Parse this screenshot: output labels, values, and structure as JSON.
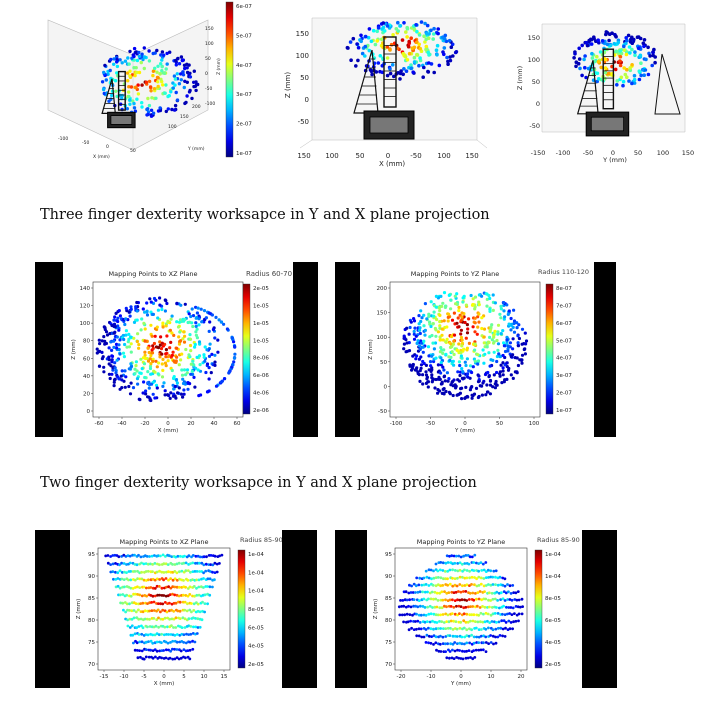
{
  "captions": {
    "three_finger": "Three finger dexterity worksapce in Y and X plane projection",
    "two_finger": "Two finger dexterity worksapce in Y and X plane projection"
  },
  "colormap": "jet",
  "chart_data": [
    {
      "type": "scatter3d",
      "panel": "top-left",
      "title": "",
      "xlabel": "X (mm)",
      "ylabel": "Y (mm)",
      "zlabel": "Z (mm)",
      "x_ticks": [
        "-100",
        "-50",
        "0",
        "50"
      ],
      "y_ticks": [
        "100",
        "150",
        "200"
      ],
      "z_ticks": [
        "150",
        "100",
        "50",
        "0",
        "-50",
        "-100"
      ],
      "colorbar_ticks": [
        "6e-07",
        "5e-07",
        "4e-07",
        "3e-07",
        "2e-07",
        "1e-07"
      ]
    },
    {
      "type": "scatter",
      "panel": "top-middle",
      "title": "",
      "xlabel": "X (mm)",
      "ylabel": "Z (mm)",
      "x_ticks": [
        "150",
        "100",
        "50",
        "0",
        "-50",
        "100",
        "150"
      ],
      "y_ticks": [
        "150",
        "100",
        "50",
        "0",
        "-50"
      ],
      "xlim": [
        -150,
        150
      ],
      "ylim": [
        -60,
        170
      ]
    },
    {
      "type": "scatter",
      "panel": "top-right",
      "title": "",
      "xlabel": "Y (mm)",
      "ylabel": "Z (mm)",
      "x_ticks": [
        "-150",
        "-100",
        "-50",
        "0",
        "50",
        "100",
        "150"
      ],
      "y_ticks": [
        "150",
        "100",
        "50",
        "0",
        "-50"
      ],
      "xlim": [
        -150,
        150
      ],
      "ylim": [
        -60,
        170
      ]
    },
    {
      "type": "scatter",
      "panel": "three-finger-xz",
      "title": "Mapping Points to XZ Plane",
      "annotation": "Radius  60-70",
      "xlabel": "X (mm)",
      "ylabel": "Z (mm)",
      "x_ticks": [
        "-60",
        "-40",
        "-20",
        "0",
        "20",
        "40",
        "60"
      ],
      "y_ticks": [
        "0",
        "20",
        "40",
        "60",
        "80",
        "100",
        "120",
        "140"
      ],
      "xlim": [
        -65,
        75
      ],
      "ylim": [
        -8,
        150
      ],
      "colorbar_ticks": [
        "2e-05",
        "1e-05",
        "1e-05",
        "1e-05",
        "8e-06",
        "6e-06",
        "4e-06",
        "2e-06"
      ]
    },
    {
      "type": "scatter",
      "panel": "three-finger-yz",
      "title": "Mapping Points to YZ Plane",
      "annotation": "Radius  110-120",
      "xlabel": "Y (mm)",
      "ylabel": "Z (mm)",
      "x_ticks": [
        "-100",
        "-50",
        "0",
        "50",
        "100"
      ],
      "y_ticks": [
        "200",
        "150",
        "100",
        "50",
        "0",
        "-50"
      ],
      "xlim": [
        -125,
        125
      ],
      "ylim": [
        -60,
        215
      ],
      "colorbar_ticks": [
        "8e-07",
        "7e-07",
        "6e-07",
        "5e-07",
        "4e-07",
        "3e-07",
        "2e-07",
        "1e-07"
      ]
    },
    {
      "type": "scatter",
      "panel": "two-finger-xz",
      "title": "Mapping Points to XZ Plane",
      "annotation": "Radius  85-90",
      "xlabel": "X (mm)",
      "ylabel": "Z (mm)",
      "x_ticks": [
        "-15",
        "-10",
        "-5",
        "0",
        "5",
        "10",
        "15"
      ],
      "y_ticks": [
        "95",
        "90",
        "85",
        "80",
        "75",
        "70"
      ],
      "xlim": [
        -16,
        16
      ],
      "ylim": [
        68,
        97
      ],
      "colorbar_ticks": [
        "1e-04",
        "1e-04",
        "1e-04",
        "8e-05",
        "6e-05",
        "4e-05",
        "2e-05"
      ]
    },
    {
      "type": "scatter",
      "panel": "two-finger-yz",
      "title": "Mapping Points to YZ Plane",
      "annotation": "Radius  85-90",
      "xlabel": "Y (mm)",
      "ylabel": "Z (mm)",
      "x_ticks": [
        "-20",
        "-10",
        "0",
        "10",
        "20"
      ],
      "y_ticks": [
        "95",
        "90",
        "85",
        "80",
        "75",
        "70"
      ],
      "xlim": [
        -25,
        25
      ],
      "ylim": [
        68,
        97
      ],
      "colorbar_ticks": [
        "1e-04",
        "1e-04",
        "8e-05",
        "6e-05",
        "4e-05",
        "2e-05"
      ]
    }
  ]
}
